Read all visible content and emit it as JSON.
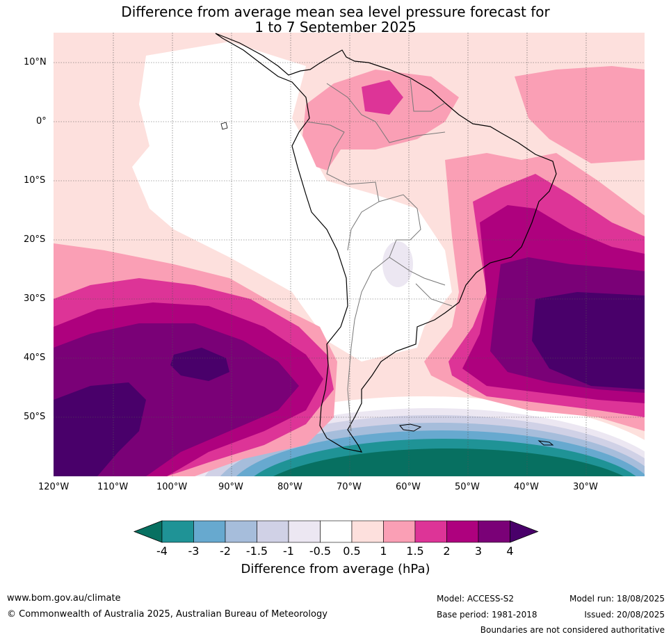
{
  "title_line1": "Difference from average mean sea level pressure forecast for",
  "title_line2": "1 to 7 September 2025",
  "lat_labels": [
    "10°N",
    "0°",
    "10°S",
    "20°S",
    "30°S",
    "40°S",
    "50°S"
  ],
  "lon_labels": [
    "120°W",
    "110°W",
    "100°W",
    "90°W",
    "80°W",
    "70°W",
    "60°W",
    "50°W",
    "40°W",
    "30°W"
  ],
  "colorbar": {
    "title": "Difference from average (hPa)",
    "labels": [
      "-4",
      "-3",
      "-2",
      "-1.5",
      "-1",
      "-0.5",
      "0.5",
      "1",
      "1.5",
      "2",
      "3",
      "4"
    ],
    "colors": [
      "#077061",
      "#1f9396",
      "#67a9cf",
      "#a6bddb",
      "#d0d1e6",
      "#ece7f2",
      "#ffffff",
      "#fde0dd",
      "#fa9fb5",
      "#dd3497",
      "#ae017e",
      "#7a0177",
      "#49006a"
    ]
  },
  "footer": {
    "website": "www.bom.gov.au/climate",
    "copyright": "© Commonwealth of Australia 2025, Australian Bureau of Meteorology",
    "model": "Model: ACCESS-S2",
    "base_period": "Base period: 1981-2018",
    "model_run": "Model run: 18/08/2025",
    "issued": "Issued: 20/08/2025",
    "disclaimer": "Boundaries are not considered authoritative"
  }
}
